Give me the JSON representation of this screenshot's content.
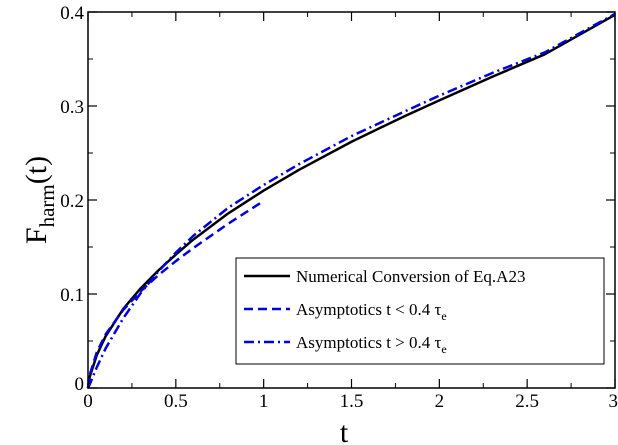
{
  "chart_data": {
    "type": "line",
    "xlabel": "t",
    "ylabel": {
      "main": "F",
      "sub": "harm",
      "suffix": "(t)"
    },
    "xlim": [
      0,
      3
    ],
    "ylim": [
      0,
      0.4
    ],
    "xticks": [
      0,
      0.5,
      1,
      1.5,
      2,
      2.5,
      3
    ],
    "xtick_labels": [
      "0",
      "0.5",
      "1",
      "1.5",
      "2",
      "2.5",
      "3"
    ],
    "yticks": [
      0,
      0.1,
      0.2,
      0.3,
      0.4
    ],
    "ytick_labels": [
      "0",
      "0.1",
      "0.2",
      "0.3",
      "0.4"
    ],
    "grid": false,
    "legend_position": "bottom-right",
    "series": [
      {
        "name": "Numerical Conversion of Eq.A23",
        "style": "solid",
        "color": "#000000",
        "x": [
          0,
          0.01,
          0.05,
          0.1,
          0.2,
          0.3,
          0.4,
          0.5,
          0.6,
          0.8,
          1.0,
          1.2,
          1.5,
          1.8,
          2.0,
          2.3,
          2.6,
          3.0
        ],
        "y": [
          0,
          0.012,
          0.035,
          0.055,
          0.084,
          0.106,
          0.125,
          0.142,
          0.158,
          0.186,
          0.21,
          0.232,
          0.262,
          0.289,
          0.306,
          0.331,
          0.355,
          0.397
        ]
      },
      {
        "name": "Asymptotics  t < 0.4 τe",
        "label_parts": [
          "Asymptotics  t < 0.4 τ",
          "e"
        ],
        "style": "dashed",
        "color": "#0000dd",
        "x": [
          0,
          0.01,
          0.05,
          0.1,
          0.2,
          0.3,
          0.4,
          0.5,
          0.6,
          0.7,
          0.8,
          0.9,
          1.0
        ],
        "y": [
          0,
          0.014,
          0.038,
          0.057,
          0.083,
          0.103,
          0.12,
          0.135,
          0.149,
          0.162,
          0.175,
          0.187,
          0.199
        ]
      },
      {
        "name": "Asymptotics  t > 0.4 τe",
        "label_parts": [
          "Asymptotics  t > 0.4 τ",
          "e"
        ],
        "style": "dashdot",
        "color": "#0000dd",
        "x": [
          0,
          0.01,
          0.05,
          0.1,
          0.2,
          0.3,
          0.4,
          0.5,
          0.6,
          0.8,
          1.0,
          1.2,
          1.5,
          1.8,
          2.0,
          2.3,
          2.6,
          3.0
        ],
        "y": [
          0,
          0.004,
          0.022,
          0.042,
          0.074,
          0.101,
          0.124,
          0.144,
          0.162,
          0.192,
          0.216,
          0.238,
          0.268,
          0.294,
          0.311,
          0.335,
          0.357,
          0.398
        ]
      }
    ]
  }
}
